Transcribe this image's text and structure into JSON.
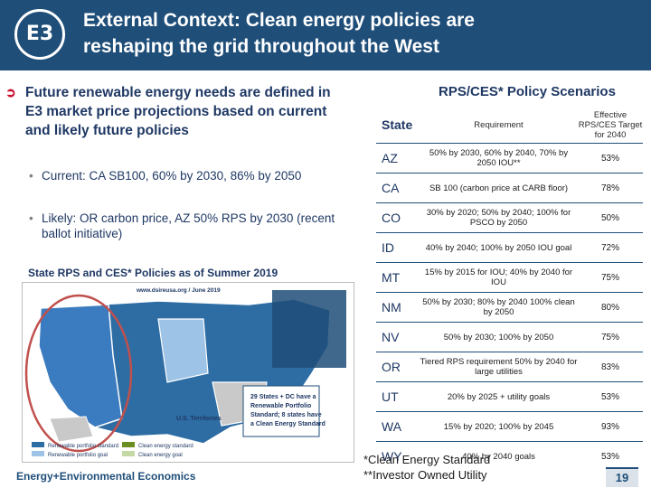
{
  "header": {
    "logo_text": "E3",
    "title_line1": "External Context: Clean energy policies are",
    "title_line2": "reshaping the grid throughout the West"
  },
  "bullets": {
    "main": "Future renewable energy needs are defined in E3 market price projections based on current and likely future policies",
    "sub1": "Current: CA SB100, 60% by 2030, 86% by 2050",
    "sub2": "Likely: OR carbon price, AZ 50% RPS by 2030 (recent ballot initiative)"
  },
  "map": {
    "caption": "State RPS and CES* Policies as of Summer 2019",
    "source": "www.dsireusa.org / June 2019",
    "box_text": "29 States + DC have a Renewable Portfolio Standard; 8 states have a Clean Energy Standard",
    "territories_title": "U.S. Territories",
    "legend": [
      {
        "label": "Renewable portfolio standard",
        "color": "#2e6da4"
      },
      {
        "label": "Renewable portfolio goal",
        "color": "#9dc3e6"
      },
      {
        "label": "Clean energy standard",
        "color": "#6b8e23"
      },
      {
        "label": "Clean energy goal",
        "color": "#c5d9a4"
      }
    ]
  },
  "table": {
    "title": "RPS/CES* Policy Scenarios",
    "col_state": "State",
    "col_requirement": "Requirement",
    "col_target": "Effective RPS/CES Target for 2040",
    "rows": [
      {
        "state": "AZ",
        "req": "50% by 2030, 60% by 2040, 70% by 2050 IOU**",
        "target": "53%"
      },
      {
        "state": "CA",
        "req": "SB 100 (carbon price at CARB floor)",
        "target": "78%"
      },
      {
        "state": "CO",
        "req": "30% by 2020; 50% by 2040; 100% for PSCO by 2050",
        "target": "50%"
      },
      {
        "state": "ID",
        "req": "40% by 2040; 100% by 2050 IOU goal",
        "target": "72%"
      },
      {
        "state": "MT",
        "req": "15% by 2015 for IOU; 40% by 2040 for IOU",
        "target": "75%"
      },
      {
        "state": "NM",
        "req": "50% by 2030; 80% by 2040 100% clean by 2050",
        "target": "80%"
      },
      {
        "state": "NV",
        "req": "50% by 2030; 100% by 2050",
        "target": "75%"
      },
      {
        "state": "OR",
        "req": "Tiered RPS requirement 50% by 2040 for large utilities",
        "target": "83%"
      },
      {
        "state": "UT",
        "req": "20% by 2025 + utility goals",
        "target": "53%"
      },
      {
        "state": "WA",
        "req": "15% by 2020; 100% by 2045",
        "target": "93%"
      },
      {
        "state": "WY",
        "req": "40% by 2040 goals",
        "target": "53%"
      }
    ]
  },
  "footnotes": {
    "line1": "*Clean Energy Standard",
    "line2": "**Investor Owned Utility"
  },
  "footer": {
    "brand": "Energy+Environmental Economics",
    "page": "19"
  }
}
